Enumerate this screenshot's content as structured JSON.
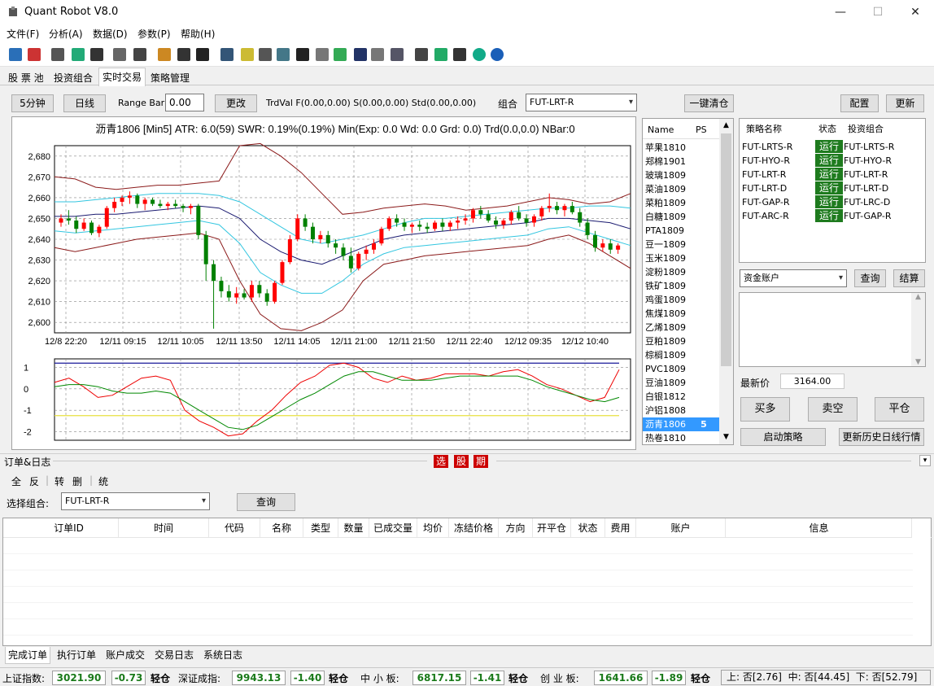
{
  "window": {
    "title": "Quant Robot V8.0",
    "min_icon": "—",
    "max_icon": "☐",
    "close_icon": "✕"
  },
  "menu": [
    "文件(F)",
    "分析(A)",
    "数据(D)",
    "参数(P)",
    "帮助(H)"
  ],
  "toolbar_icons": [
    "person-icon",
    "tool-icon",
    "check-icon",
    "print-icon",
    "chess-icon",
    "doc-icon",
    "grid-icon",
    "chart-icon",
    "mail-icon",
    "filter-icon",
    "data-icon",
    "money-icon",
    "report-icon",
    "gear-icon",
    "lightning-icon",
    "play-icon",
    "image-icon",
    "stats-icon",
    "wrench-icon",
    "shield-icon",
    "window-icon",
    "excel-icon",
    "export-icon",
    "refresh-icon",
    "info-icon"
  ],
  "top_tabs": [
    "股 票 池",
    "投资组合",
    "实时交易",
    "策略管理"
  ],
  "controls": {
    "btn_5min": "5分钟",
    "btn_daily": "日线",
    "range_bar_label": "Range Bar",
    "range_bar_value": "0.00",
    "btn_change": "更改",
    "trdval_text": "TrdVal F(0.00,0.00) S(0.00,0.00) Std(0.00,0.00)",
    "portfolio_label": "组合",
    "portfolio_value": "FUT-LRT-R",
    "btn_close_all": "一键清仓",
    "btn_config": "配置",
    "btn_update": "更新"
  },
  "chart": {
    "header": "沥青1806 [Min5] ATR: 6.0(59) SWR: 0.19%(0.19%) Min(Exp: 0.0 Wd: 0.0 Grd: 0.0) Trd(0.0,0.0) NBar:0",
    "y_ticks": [
      "2,680",
      "2,670",
      "2,660",
      "2,650",
      "2,640",
      "2,630",
      "2,620",
      "2,610",
      "2,600"
    ],
    "x_ticks": [
      "12/8 22:20",
      "12/11 09:15",
      "12/11 10:05",
      "12/11 13:50",
      "12/11 14:05",
      "12/11 21:00",
      "12/11 21:50",
      "12/11 22:40",
      "12/12 09:35",
      "12/12 10:40"
    ],
    "osc_ticks": [
      "1",
      "0",
      "-1",
      "-2"
    ]
  },
  "chart_data": {
    "type": "candlestick",
    "title": "沥青1806 [Min5]",
    "ylim": [
      2595,
      2685
    ],
    "y_ticks": [
      2600,
      2610,
      2620,
      2630,
      2640,
      2650,
      2660,
      2670,
      2680
    ],
    "candles": [
      [
        2648,
        2652,
        2646,
        2650
      ],
      [
        2650,
        2654,
        2647,
        2649
      ],
      [
        2649,
        2651,
        2643,
        2645
      ],
      [
        2645,
        2650,
        2644,
        2648
      ],
      [
        2648,
        2649,
        2642,
        2643
      ],
      [
        2643,
        2647,
        2641,
        2646
      ],
      [
        2646,
        2656,
        2645,
        2655
      ],
      [
        2655,
        2660,
        2653,
        2658
      ],
      [
        2658,
        2661,
        2656,
        2660
      ],
      [
        2660,
        2663,
        2657,
        2661
      ],
      [
        2661,
        2662,
        2655,
        2657
      ],
      [
        2657,
        2660,
        2654,
        2659
      ],
      [
        2659,
        2660,
        2656,
        2657
      ],
      [
        2657,
        2659,
        2655,
        2656
      ],
      [
        2656,
        2658,
        2654,
        2657
      ],
      [
        2657,
        2659,
        2655,
        2656
      ],
      [
        2656,
        2657,
        2653,
        2655
      ],
      [
        2655,
        2657,
        2652,
        2656
      ],
      [
        2656,
        2657,
        2640,
        2642
      ],
      [
        2642,
        2644,
        2620,
        2628
      ],
      [
        2628,
        2630,
        2597,
        2620
      ],
      [
        2620,
        2622,
        2612,
        2615
      ],
      [
        2615,
        2618,
        2610,
        2612
      ],
      [
        2612,
        2617,
        2609,
        2614
      ],
      [
        2614,
        2616,
        2611,
        2612
      ],
      [
        2612,
        2620,
        2610,
        2618
      ],
      [
        2618,
        2620,
        2612,
        2614
      ],
      [
        2614,
        2616,
        2608,
        2610
      ],
      [
        2610,
        2620,
        2609,
        2619
      ],
      [
        2619,
        2630,
        2618,
        2629
      ],
      [
        2629,
        2642,
        2628,
        2640
      ],
      [
        2640,
        2652,
        2639,
        2650
      ],
      [
        2650,
        2652,
        2644,
        2646
      ],
      [
        2646,
        2648,
        2638,
        2640
      ],
      [
        2640,
        2644,
        2638,
        2642
      ],
      [
        2642,
        2644,
        2636,
        2638
      ],
      [
        2638,
        2640,
        2633,
        2636
      ],
      [
        2636,
        2638,
        2630,
        2632
      ],
      [
        2632,
        2636,
        2624,
        2626
      ],
      [
        2626,
        2634,
        2625,
        2633
      ],
      [
        2633,
        2637,
        2630,
        2635
      ],
      [
        2635,
        2640,
        2633,
        2638
      ],
      [
        2638,
        2646,
        2637,
        2645
      ],
      [
        2645,
        2651,
        2644,
        2650
      ],
      [
        2650,
        2652,
        2646,
        2648
      ],
      [
        2648,
        2650,
        2644,
        2646
      ],
      [
        2646,
        2648,
        2643,
        2647
      ],
      [
        2647,
        2649,
        2644,
        2646
      ],
      [
        2646,
        2648,
        2643,
        2645
      ],
      [
        2645,
        2649,
        2644,
        2648
      ],
      [
        2648,
        2650,
        2644,
        2646
      ],
      [
        2646,
        2649,
        2644,
        2648
      ],
      [
        2648,
        2651,
        2645,
        2649
      ],
      [
        2649,
        2652,
        2647,
        2650
      ],
      [
        2650,
        2655,
        2648,
        2654
      ],
      [
        2654,
        2656,
        2650,
        2652
      ],
      [
        2652,
        2654,
        2648,
        2649
      ],
      [
        2649,
        2651,
        2645,
        2647
      ],
      [
        2647,
        2650,
        2645,
        2649
      ],
      [
        2649,
        2654,
        2647,
        2653
      ],
      [
        2653,
        2656,
        2649,
        2650
      ],
      [
        2650,
        2652,
        2646,
        2648
      ],
      [
        2648,
        2652,
        2646,
        2651
      ],
      [
        2651,
        2656,
        2649,
        2655
      ],
      [
        2655,
        2662,
        2653,
        2656
      ],
      [
        2656,
        2658,
        2652,
        2654
      ],
      [
        2654,
        2657,
        2651,
        2656
      ],
      [
        2656,
        2658,
        2652,
        2653
      ],
      [
        2653,
        2655,
        2646,
        2648
      ],
      [
        2648,
        2650,
        2640,
        2642
      ],
      [
        2642,
        2644,
        2634,
        2636
      ],
      [
        2636,
        2640,
        2634,
        2638
      ],
      [
        2638,
        2640,
        2633,
        2635
      ],
      [
        2635,
        2638,
        2633,
        2637
      ]
    ],
    "bands": {
      "upper_dark": [
        2670,
        2669,
        2665,
        2664,
        2665,
        2666,
        2666,
        2667,
        2668,
        2685,
        2686,
        2680,
        2672,
        2662,
        2652,
        2653,
        2655,
        2656,
        2657,
        2656,
        2654,
        2655,
        2656,
        2658,
        2660,
        2659,
        2657,
        2658,
        2662
      ],
      "upper_cyan": [
        2658,
        2658,
        2659,
        2660,
        2661,
        2662,
        2662,
        2662,
        2661,
        2658,
        2652,
        2646,
        2640,
        2638,
        2640,
        2642,
        2645,
        2648,
        2650,
        2650,
        2651,
        2652,
        2653,
        2654,
        2655,
        2655,
        2656,
        2656,
        2655
      ],
      "mid_navy": [
        2651,
        2651,
        2652,
        2652,
        2653,
        2654,
        2655,
        2656,
        2655,
        2650,
        2640,
        2634,
        2630,
        2628,
        2632,
        2636,
        2640,
        2642,
        2643,
        2644,
        2645,
        2646,
        2647,
        2648,
        2650,
        2650,
        2649,
        2648,
        2645
      ],
      "lower_cyan": [
        2644,
        2643,
        2644,
        2645,
        2646,
        2647,
        2648,
        2649,
        2647,
        2638,
        2624,
        2618,
        2614,
        2614,
        2620,
        2628,
        2633,
        2636,
        2637,
        2638,
        2639,
        2640,
        2641,
        2642,
        2645,
        2646,
        2643,
        2640,
        2637
      ],
      "lower_dark": [
        2636,
        2634,
        2636,
        2638,
        2640,
        2641,
        2642,
        2643,
        2640,
        2620,
        2604,
        2597,
        2596,
        2600,
        2606,
        2620,
        2628,
        2630,
        2632,
        2633,
        2634,
        2635,
        2636,
        2637,
        2640,
        2642,
        2638,
        2632,
        2626
      ]
    },
    "oscillator": {
      "ylim": [
        -2.4,
        1.4
      ],
      "red": [
        0.3,
        0.5,
        0.1,
        -0.4,
        -0.3,
        0.1,
        0.5,
        0.6,
        0.4,
        -1.0,
        -1.5,
        -1.8,
        -2.2,
        -2.1,
        -1.5,
        -1.0,
        -0.3,
        0.3,
        0.6,
        1.1,
        1.2,
        1.0,
        0.5,
        0.3,
        0.6,
        0.4,
        0.5,
        0.7,
        0.7,
        0.7,
        0.6,
        0.8,
        0.9,
        0.6,
        0.2,
        0.0,
        -0.3,
        -0.6,
        -0.4,
        0.9
      ],
      "green": [
        0.1,
        0.2,
        0.2,
        0.1,
        -0.1,
        -0.2,
        -0.2,
        -0.1,
        -0.2,
        -0.6,
        -1.0,
        -1.4,
        -1.8,
        -1.9,
        -1.7,
        -1.3,
        -0.9,
        -0.5,
        -0.2,
        0.2,
        0.6,
        0.8,
        0.8,
        0.6,
        0.4,
        0.4,
        0.4,
        0.5,
        0.6,
        0.6,
        0.6,
        0.6,
        0.6,
        0.4,
        0.1,
        -0.1,
        -0.3,
        -0.5,
        -0.6,
        -0.4
      ]
    }
  },
  "contracts": {
    "head_name": "Name",
    "head_ps": "PS",
    "rows": [
      {
        "name": "苹果1810",
        "ps": ""
      },
      {
        "name": "郑棉1901",
        "ps": ""
      },
      {
        "name": "玻璃1809",
        "ps": ""
      },
      {
        "name": "菜油1809",
        "ps": ""
      },
      {
        "name": "菜粕1809",
        "ps": ""
      },
      {
        "name": "白糖1809",
        "ps": ""
      },
      {
        "name": "PTA1809",
        "ps": ""
      },
      {
        "name": "豆一1809",
        "ps": ""
      },
      {
        "name": "玉米1809",
        "ps": ""
      },
      {
        "name": "淀粉1809",
        "ps": ""
      },
      {
        "name": "铁矿1809",
        "ps": ""
      },
      {
        "name": "鸡蛋1809",
        "ps": ""
      },
      {
        "name": "焦煤1809",
        "ps": ""
      },
      {
        "name": "乙烯1809",
        "ps": ""
      },
      {
        "name": "豆粕1809",
        "ps": ""
      },
      {
        "name": "棕榈1809",
        "ps": ""
      },
      {
        "name": "PVC1809",
        "ps": ""
      },
      {
        "name": "豆油1809",
        "ps": ""
      },
      {
        "name": "白银1812",
        "ps": ""
      },
      {
        "name": "沪铝1808",
        "ps": ""
      },
      {
        "name": "沥青1806",
        "ps": "5"
      },
      {
        "name": "热卷1810",
        "ps": ""
      }
    ]
  },
  "strategies": {
    "head": [
      "策略名称",
      "状态",
      "投资组合"
    ],
    "rows": [
      {
        "name": "FUT-LRTS-R",
        "status": "运行",
        "portfolio": "FUT-LRTS-R"
      },
      {
        "name": "FUT-HYO-R",
        "status": "运行",
        "portfolio": "FUT-HYO-R"
      },
      {
        "name": "FUT-LRT-R",
        "status": "运行",
        "portfolio": "FUT-LRT-R"
      },
      {
        "name": "FUT-LRT-D",
        "status": "运行",
        "portfolio": "FUT-LRT-D"
      },
      {
        "name": "FUT-GAP-R",
        "status": "运行",
        "portfolio": "FUT-LRC-D"
      },
      {
        "name": "FUT-ARC-R",
        "status": "运行",
        "portfolio": "FUT-GAP-R"
      }
    ]
  },
  "account": {
    "select_value": "资金账户",
    "btn_query": "查询",
    "btn_settle": "结算",
    "last_price_label": "最新价",
    "last_price": "3164.00",
    "btn_buy": "买多",
    "btn_sell": "卖空",
    "btn_flat": "平仓",
    "btn_start": "启动策略",
    "btn_update_hist": "更新历史日线行情"
  },
  "orders": {
    "section_title": "订单&日志",
    "tags": [
      "选",
      "股",
      "期"
    ],
    "filters": [
      "全",
      "反",
      "转",
      "删",
      "统"
    ],
    "select_label": "选择组合:",
    "select_value": "FUT-LRT-R",
    "btn_query": "查询",
    "columns": [
      "订单ID",
      "时间",
      "代码",
      "名称",
      "类型",
      "数量",
      "已成交量",
      "均价",
      "冻结价格",
      "方向",
      "开平仓",
      "状态",
      "费用",
      "账户",
      "信息"
    ]
  },
  "bottom_tabs": [
    "完成订单",
    "执行订单",
    "账户成交",
    "交易日志",
    "系统日志"
  ],
  "status": {
    "sh_label": "上证指数:",
    "sh_val": "3021.90",
    "sh_chg": "-0.73",
    "sh_pos": "轻仓",
    "sz_label": "深证成指:",
    "sz_val": "9943.13",
    "sz_chg": "-1.40",
    "sz_pos": "轻仓",
    "zx_label": "中 小 板:",
    "zx_val": "6817.15",
    "zx_chg": "-1.41",
    "zx_pos": "轻仓",
    "cy_label": "创 业 板:",
    "cy_val": "1641.66",
    "cy_chg": "-1.89",
    "cy_pos": "轻仓",
    "summary": "上: 否[2.76]  中: 否[44.45]  下: 否[52.79]"
  },
  "colors": {
    "up": "#ff0000",
    "down": "#008000",
    "run_bg": "#1e7b1e",
    "sel": "#3399ff"
  }
}
